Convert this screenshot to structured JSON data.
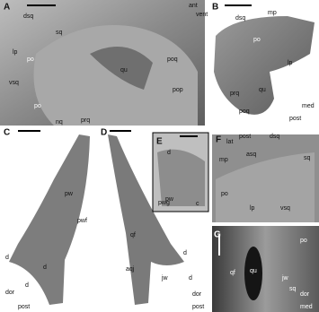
{
  "panels": [
    {
      "letter": "A",
      "labels": [
        "ant",
        "vent",
        "dsq",
        "sq",
        "lp",
        "po",
        "vsq",
        "qu",
        "poq",
        "pop",
        "po",
        "nq",
        "prq"
      ]
    },
    {
      "letter": "B",
      "labels": [
        "dsq",
        "mp",
        "po",
        "lp",
        "qu",
        "prq",
        "poq",
        "med",
        "post"
      ]
    },
    {
      "letter": "C",
      "labels": [
        "pw",
        "pwf",
        "d",
        "d",
        "d",
        "dor",
        "post"
      ]
    },
    {
      "letter": "D",
      "labels": [
        "pw",
        "qf",
        "d",
        "d",
        "aqj",
        "jw",
        "dor",
        "post"
      ]
    },
    {
      "letter": "E",
      "labels": [
        "d",
        "pwg",
        "c"
      ]
    },
    {
      "letter": "F",
      "labels": [
        "lat",
        "post",
        "mp",
        "asq",
        "dsq",
        "sq",
        "po",
        "lp",
        "vsq"
      ]
    },
    {
      "letter": "G",
      "labels": [
        "po",
        "qf",
        "qu",
        "jw",
        "sq",
        "dor",
        "med"
      ]
    }
  ]
}
